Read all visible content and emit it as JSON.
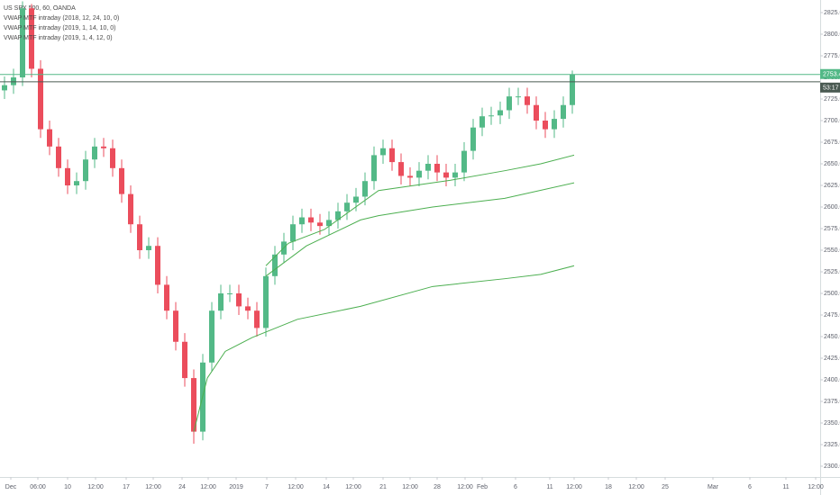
{
  "chart_data": {
    "type": "candlestick",
    "title": "US SPX 500, 60, OANDA",
    "up_color": "#53b987",
    "down_color": "#eb4d5c",
    "open": [
      2735,
      2741,
      2750,
      2830,
      2760,
      2690,
      2670,
      2645,
      2625,
      2630,
      2655,
      2670,
      2668,
      2645,
      2615,
      2580,
      2550,
      2555,
      2510,
      2480,
      2444,
      2402,
      2340,
      2420,
      2480,
      2500,
      2500,
      2485,
      2480,
      2460,
      2520,
      2545,
      2560,
      2580,
      2588,
      2582,
      2578,
      2585,
      2595,
      2605,
      2612,
      2630,
      2660,
      2668,
      2652,
      2636,
      2634,
      2642,
      2650,
      2640,
      2634,
      2640,
      2665,
      2692,
      2705,
      2706,
      2712,
      2728,
      2728,
      2718,
      2700,
      2690,
      2702,
      2718
    ],
    "high": [
      2751,
      2760,
      2838,
      2835,
      2770,
      2700,
      2680,
      2655,
      2640,
      2665,
      2680,
      2680,
      2678,
      2655,
      2625,
      2590,
      2565,
      2565,
      2520,
      2490,
      2454,
      2412,
      2430,
      2490,
      2510,
      2510,
      2510,
      2495,
      2490,
      2530,
      2555,
      2570,
      2590,
      2598,
      2598,
      2592,
      2595,
      2605,
      2615,
      2622,
      2640,
      2670,
      2678,
      2678,
      2662,
      2646,
      2652,
      2660,
      2660,
      2650,
      2650,
      2675,
      2702,
      2715,
      2716,
      2722,
      2738,
      2738,
      2738,
      2728,
      2710,
      2712,
      2728,
      2758
    ],
    "low": [
      2725,
      2731,
      2740,
      2750,
      2680,
      2660,
      2635,
      2615,
      2615,
      2620,
      2645,
      2658,
      2635,
      2605,
      2570,
      2540,
      2540,
      2500,
      2470,
      2434,
      2392,
      2326,
      2330,
      2410,
      2470,
      2490,
      2475,
      2470,
      2450,
      2450,
      2510,
      2535,
      2550,
      2570,
      2572,
      2568,
      2568,
      2575,
      2585,
      2595,
      2602,
      2620,
      2650,
      2642,
      2626,
      2624,
      2624,
      2632,
      2630,
      2624,
      2624,
      2630,
      2655,
      2682,
      2695,
      2696,
      2702,
      2718,
      2708,
      2690,
      2680,
      2680,
      2692,
      2708
    ],
    "close": [
      2741,
      2750,
      2830,
      2760,
      2690,
      2670,
      2645,
      2625,
      2630,
      2655,
      2670,
      2668,
      2645,
      2615,
      2580,
      2550,
      2555,
      2510,
      2480,
      2444,
      2402,
      2340,
      2420,
      2480,
      2500,
      2500,
      2485,
      2480,
      2460,
      2520,
      2545,
      2560,
      2580,
      2588,
      2582,
      2578,
      2585,
      2595,
      2605,
      2612,
      2630,
      2660,
      2668,
      2652,
      2636,
      2634,
      2642,
      2650,
      2640,
      2634,
      2640,
      2665,
      2692,
      2705,
      2706,
      2712,
      2728,
      2728,
      2718,
      2700,
      2690,
      2702,
      2718,
      2753.4
    ],
    "series": [
      {
        "name": "VWAP MTF intraday (2018, 12, 24, 10, 0)",
        "color": "#4caf50",
        "x": [
          21.5,
          23,
          25,
          28,
          33,
          40,
          48,
          56,
          60,
          63.7
        ],
        "values": [
          2340,
          2402,
          2433,
          2449,
          2470,
          2485,
          2508,
          2517,
          2522,
          2532
        ]
      },
      {
        "name": "VWAP MTF intraday (2019, 1, 14, 10, 0)",
        "color": "#4caf50",
        "x": [
          29.5,
          32,
          36,
          42,
          50,
          56,
          60,
          63.7
        ],
        "values": [
          2532,
          2558,
          2574,
          2619,
          2631,
          2642,
          2650,
          2660
        ]
      },
      {
        "name": "VWAP MTF intraday (2019, 1, 4, 12, 0)",
        "color": "#4caf50",
        "x": [
          29.5,
          34,
          40,
          42,
          48,
          56,
          63.7
        ],
        "values": [
          2520,
          2555,
          2585,
          2590,
          2600,
          2610,
          2628
        ]
      }
    ],
    "last_price": 2753.4,
    "last_price_color": "#53b987",
    "reference_price": 2745,
    "countdown": "53:17",
    "xlim": [
      0,
      91
    ],
    "ylim": [
      2287.5,
      2839.6
    ],
    "xticks": [
      {
        "value": 1.2,
        "label": "Dec"
      },
      {
        "value": 4.2,
        "label": "06:00"
      },
      {
        "value": 7.5,
        "label": "10"
      },
      {
        "value": 10.6,
        "label": "12:00"
      },
      {
        "value": 14,
        "label": "17"
      },
      {
        "value": 17,
        "label": "12:00"
      },
      {
        "value": 20.2,
        "label": "24"
      },
      {
        "value": 23.1,
        "label": "12:00"
      },
      {
        "value": 26.2,
        "label": "2019"
      },
      {
        "value": 29.6,
        "label": "7"
      },
      {
        "value": 32.8,
        "label": "12:00"
      },
      {
        "value": 36.2,
        "label": "14"
      },
      {
        "value": 39.2,
        "label": "12:00"
      },
      {
        "value": 42.5,
        "label": "21"
      },
      {
        "value": 45.5,
        "label": "12:00"
      },
      {
        "value": 48.5,
        "label": "28"
      },
      {
        "value": 51.6,
        "label": "12:00"
      },
      {
        "value": 53.5,
        "label": "Feb"
      },
      {
        "value": 57.2,
        "label": "6"
      },
      {
        "value": 61,
        "label": "11"
      },
      {
        "value": 63.7,
        "label": "12:00"
      },
      {
        "value": 67.5,
        "label": "18"
      },
      {
        "value": 70.6,
        "label": "12:00"
      },
      {
        "value": 73.8,
        "label": "25"
      },
      {
        "value": 79.1,
        "label": "Mar"
      },
      {
        "value": 83.2,
        "label": "6"
      },
      {
        "value": 87.2,
        "label": "11"
      },
      {
        "value": 90.5,
        "label": "12:00"
      }
    ],
    "yticks": [
      {
        "value": 2300,
        "label": "2300.0"
      },
      {
        "value": 2325,
        "label": "2325.0"
      },
      {
        "value": 2350,
        "label": "2350.0"
      },
      {
        "value": 2375,
        "label": "2375.0"
      },
      {
        "value": 2400,
        "label": "2400.0"
      },
      {
        "value": 2425,
        "label": "2425.0"
      },
      {
        "value": 2450,
        "label": "2450.0"
      },
      {
        "value": 2475,
        "label": "2475.0"
      },
      {
        "value": 2500,
        "label": "2500.0"
      },
      {
        "value": 2525,
        "label": "2525.0"
      },
      {
        "value": 2550,
        "label": "2550.0"
      },
      {
        "value": 2575,
        "label": "2575.0"
      },
      {
        "value": 2600,
        "label": "2600.0"
      },
      {
        "value": 2625,
        "label": "2625.0"
      },
      {
        "value": 2650,
        "label": "2650.0"
      },
      {
        "value": 2675,
        "label": "2675.0"
      },
      {
        "value": 2700,
        "label": "2700.0"
      },
      {
        "value": 2725,
        "label": "2725.0"
      },
      {
        "value": 2750,
        "label": "2750.0"
      },
      {
        "value": 2775,
        "label": "2775.0"
      },
      {
        "value": 2800,
        "label": "2800.0"
      },
      {
        "value": 2825,
        "label": "2825.0"
      }
    ]
  }
}
